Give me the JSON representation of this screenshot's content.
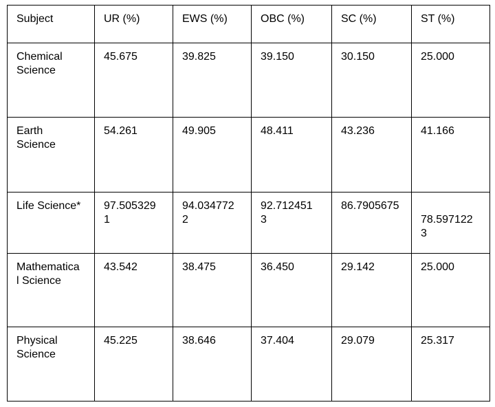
{
  "table": {
    "headers": [
      "Subject",
      "UR (%)",
      "EWS (%)",
      "OBC (%)",
      "SC (%)",
      "ST (%)"
    ],
    "rows": [
      [
        "Chemical\nScience",
        "45.675",
        "39.825",
        "39.150",
        "30.150",
        "25.000"
      ],
      [
        "Earth\nScience",
        "54.261",
        "49.905",
        "48.411",
        "43.236",
        "41.166"
      ],
      [
        "Life Science*",
        "97.505329\n1",
        "94.034772\n2",
        "92.712451\n3",
        "86.7905675",
        "\n78.597122\n3"
      ],
      [
        "Mathematica\nl Science",
        "43.542",
        "38.475",
        "36.450",
        "29.142",
        "25.000"
      ],
      [
        "Physical\nScience",
        "45.225",
        "38.646",
        "37.404",
        "29.079",
        "25.317"
      ]
    ],
    "colors": {
      "border": "#000000",
      "text": "#000000",
      "background": "#ffffff"
    }
  }
}
